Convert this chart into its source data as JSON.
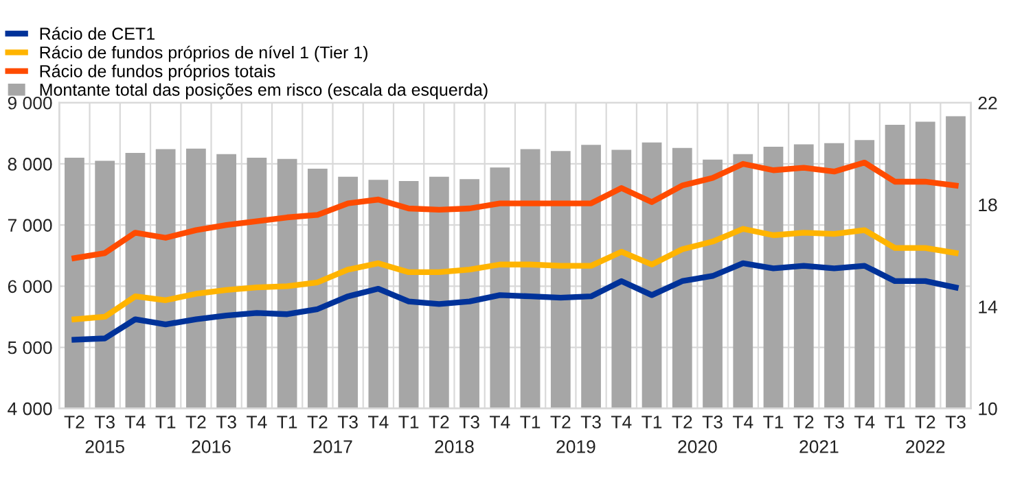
{
  "chart_data": {
    "type": "bar",
    "categories": [
      "T2",
      "T3",
      "T4",
      "T1",
      "T2",
      "T3",
      "T4",
      "T1",
      "T2",
      "T3",
      "T4",
      "T1",
      "T2",
      "T3",
      "T4",
      "T1",
      "T2",
      "T3",
      "T4",
      "T1",
      "T2",
      "T3",
      "T4",
      "T1",
      "T2",
      "T3",
      "T4",
      "T1",
      "T2",
      "T3"
    ],
    "series": [
      {
        "name": "Rácio de CET1",
        "type": "line",
        "axis": "y2",
        "color": "#003299",
        "values": [
          12.7,
          12.75,
          13.5,
          13.3,
          13.5,
          13.65,
          13.75,
          13.7,
          13.9,
          14.4,
          14.7,
          14.2,
          14.1,
          14.2,
          14.45,
          14.4,
          14.35,
          14.4,
          15.0,
          14.45,
          15.0,
          15.2,
          15.7,
          15.5,
          15.6,
          15.5,
          15.6,
          15.0,
          15.0,
          14.75
        ]
      },
      {
        "name": "Rácio de fundos próprios de nível 1 (Tier 1)",
        "type": "line",
        "axis": "y2",
        "color": "#ffb400",
        "values": [
          13.5,
          13.6,
          14.4,
          14.25,
          14.5,
          14.65,
          14.75,
          14.8,
          14.95,
          15.45,
          15.7,
          15.35,
          15.35,
          15.45,
          15.65,
          15.65,
          15.6,
          15.6,
          16.15,
          15.65,
          16.25,
          16.55,
          17.05,
          16.8,
          16.9,
          16.85,
          17.0,
          16.3,
          16.3,
          16.1
        ]
      },
      {
        "name": "Rácio de fundos próprios totais",
        "type": "line",
        "axis": "y2",
        "color": "#ff4b00",
        "values": [
          15.9,
          16.1,
          16.9,
          16.7,
          17.0,
          17.2,
          17.35,
          17.5,
          17.6,
          18.05,
          18.2,
          17.85,
          17.8,
          17.85,
          18.05,
          18.05,
          18.05,
          18.05,
          18.65,
          18.1,
          18.75,
          19.05,
          19.6,
          19.35,
          19.45,
          19.3,
          19.65,
          18.9,
          18.9,
          18.75
        ]
      },
      {
        "name": "Montante total das posições em risco (escala da esquerda)",
        "color": "#a6a6a6",
        "values": [
          8100,
          8050,
          8180,
          8240,
          8250,
          8160,
          8100,
          8080,
          7920,
          7790,
          7740,
          7720,
          7790,
          7750,
          7940,
          8240,
          8210,
          8310,
          8230,
          8350,
          8260,
          8070,
          8160,
          8280,
          8320,
          8340,
          8390,
          8640,
          8690,
          8780
        ]
      }
    ],
    "ylim": [
      4000,
      9000
    ],
    "yticks": [
      {
        "value": 4000,
        "label": "4 000"
      },
      {
        "value": 5000,
        "label": "5 000"
      },
      {
        "value": 6000,
        "label": "6 000"
      },
      {
        "value": 7000,
        "label": "7 000"
      },
      {
        "value": 8000,
        "label": "8 000"
      },
      {
        "value": 9000,
        "label": "9 000"
      }
    ],
    "y2lim": [
      10,
      22
    ],
    "y2ticks": [
      10,
      14,
      18,
      22
    ],
    "annotations": [
      "2015",
      "2016",
      "2017",
      "2018",
      "2019",
      "2020",
      "2021",
      "2022"
    ],
    "grid": true,
    "legend": "top left"
  }
}
